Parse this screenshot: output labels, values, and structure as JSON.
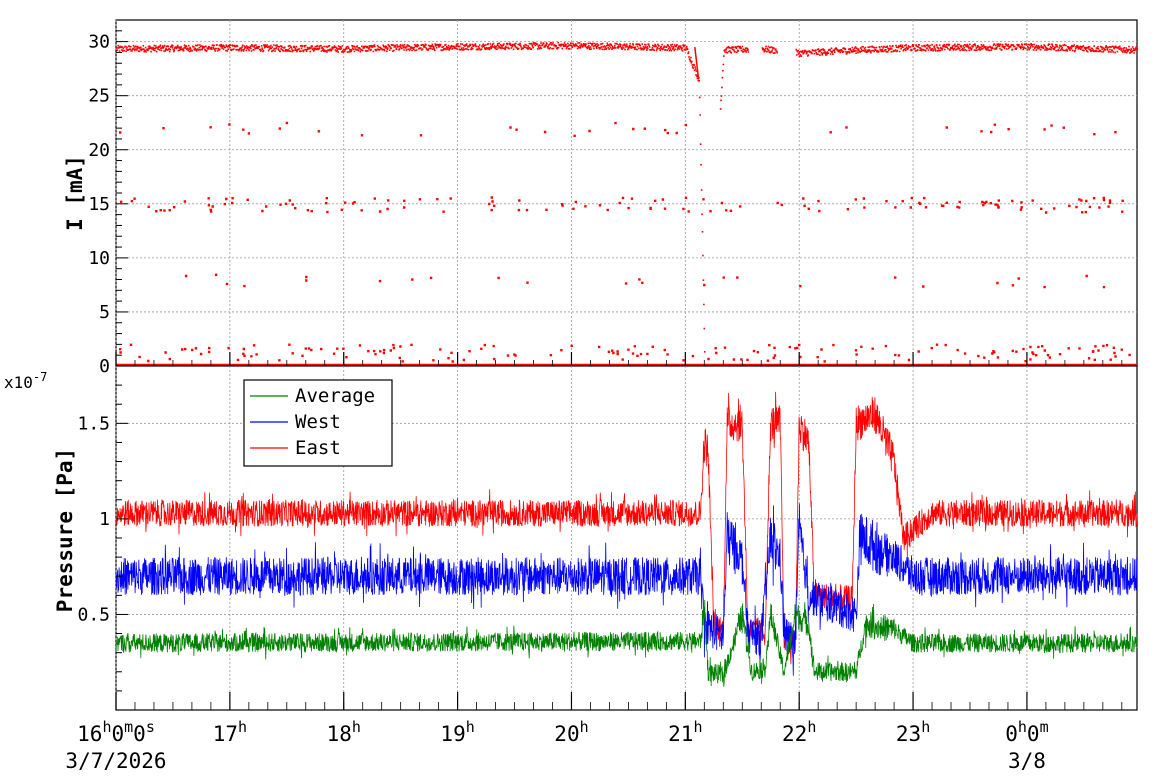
{
  "chart_data": [
    {
      "type": "scatter",
      "ylabel": "I [mA]",
      "ylim": [
        0,
        32
      ],
      "yticks": [
        0,
        5,
        10,
        15,
        20,
        25,
        30
      ],
      "ytick_labels": [
        "0",
        "5",
        "10",
        "15",
        "20",
        "25",
        "30"
      ],
      "grid": true,
      "x_start": "2026-03-07 16:00",
      "x_end": "2026-03-08 00:58",
      "series": [
        {
          "color": "#ff0000",
          "approx_levels_mA": [
            29.5,
            22,
            15,
            8,
            0.5
          ],
          "beam_current_trace": [
            [
              "2026-03-07 16:00",
              29.4
            ],
            [
              "2026-03-07 17:00",
              29.5
            ],
            [
              "2026-03-07 18:00",
              29.4
            ],
            [
              "2026-03-07 19:00",
              29.6
            ],
            [
              "2026-03-07 20:00",
              29.7
            ],
            [
              "2026-03-07 21:00",
              29.5
            ],
            [
              "2026-03-07 21:07",
              26.5
            ],
            [
              "2026-03-07 21:10",
              0.0
            ],
            [
              "2026-03-07 21:20",
              29.3
            ],
            [
              "2026-03-07 21:40",
              29.4
            ],
            [
              "2026-03-07 22:00",
              29.0
            ],
            [
              "2026-03-07 22:30",
              29.3
            ],
            [
              "2026-03-07 23:00",
              29.5
            ],
            [
              "2026-03-08 00:00",
              29.6
            ],
            [
              "2026-03-08 00:58",
              29.3
            ]
          ],
          "gaps": [
            [
              "2026-03-07 21:10",
              "2026-03-07 21:18"
            ],
            [
              "2026-03-07 21:33",
              "2026-03-07 21:40"
            ],
            [
              "2026-03-07 21:48",
              "2026-03-07 21:58"
            ]
          ]
        }
      ]
    },
    {
      "type": "line",
      "ylabel": "Pressure [Pa]",
      "y_multiplier": "x10^-7",
      "y_multiplier_base": "x10",
      "y_multiplier_exp": "-7",
      "ylim": [
        0.0,
        1.8
      ],
      "yticks": [
        0.5,
        1.0,
        1.5
      ],
      "ytick_labels": [
        "0.5",
        "1",
        "1.5"
      ],
      "grid": true,
      "legend_position": "top-left",
      "x_start": "2026-03-07 16:00",
      "x_end": "2026-03-08 00:58",
      "series": [
        {
          "name": "Average",
          "color": "#008000",
          "baseline": 0.35,
          "noise": 0.05,
          "points": [
            [
              "2026-03-07 16:00",
              0.35
            ],
            [
              "2026-03-07 21:08",
              0.36
            ],
            [
              "2026-03-07 21:10",
              0.55
            ],
            [
              "2026-03-07 21:12",
              0.2
            ],
            [
              "2026-03-07 21:20",
              0.18
            ],
            [
              "2026-03-07 21:30",
              0.5
            ],
            [
              "2026-03-07 21:35",
              0.2
            ],
            [
              "2026-03-07 21:42",
              0.22
            ],
            [
              "2026-03-07 21:45",
              0.5
            ],
            [
              "2026-03-07 21:52",
              0.2
            ],
            [
              "2026-03-07 21:58",
              0.5
            ],
            [
              "2026-03-07 22:05",
              0.45
            ],
            [
              "2026-03-07 22:08",
              0.2
            ],
            [
              "2026-03-07 22:30",
              0.2
            ],
            [
              "2026-03-07 22:35",
              0.45
            ],
            [
              "2026-03-07 22:50",
              0.42
            ],
            [
              "2026-03-07 23:00",
              0.35
            ],
            [
              "2026-03-08 00:58",
              0.35
            ]
          ]
        },
        {
          "name": "West",
          "color": "#0000ff",
          "baseline": 0.7,
          "noise": 0.1,
          "points": [
            [
              "2026-03-07 16:00",
              0.7
            ],
            [
              "2026-03-07 21:08",
              0.7
            ],
            [
              "2026-03-07 21:10",
              0.45
            ],
            [
              "2026-03-07 21:20",
              0.38
            ],
            [
              "2026-03-07 21:22",
              0.9
            ],
            [
              "2026-03-07 21:30",
              0.8
            ],
            [
              "2026-03-07 21:33",
              0.4
            ],
            [
              "2026-03-07 21:40",
              0.38
            ],
            [
              "2026-03-07 21:45",
              0.9
            ],
            [
              "2026-03-07 21:50",
              0.8
            ],
            [
              "2026-03-07 21:52",
              0.4
            ],
            [
              "2026-03-07 21:58",
              0.35
            ],
            [
              "2026-03-07 22:00",
              0.95
            ],
            [
              "2026-03-07 22:05",
              0.6
            ],
            [
              "2026-03-07 22:30",
              0.5
            ],
            [
              "2026-03-07 22:32",
              0.9
            ],
            [
              "2026-03-07 22:50",
              0.8
            ],
            [
              "2026-03-07 23:00",
              0.7
            ],
            [
              "2026-03-08 00:58",
              0.7
            ]
          ]
        },
        {
          "name": "East",
          "color": "#ff0000",
          "baseline": 1.03,
          "noise": 0.07,
          "points": [
            [
              "2026-03-07 16:00",
              1.03
            ],
            [
              "2026-03-07 21:08",
              1.03
            ],
            [
              "2026-03-07 21:10",
              1.4
            ],
            [
              "2026-03-07 21:12",
              1.35
            ],
            [
              "2026-03-07 21:15",
              0.45
            ],
            [
              "2026-03-07 21:20",
              0.42
            ],
            [
              "2026-03-07 21:22",
              1.5
            ],
            [
              "2026-03-07 21:30",
              1.5
            ],
            [
              "2026-03-07 21:33",
              0.42
            ],
            [
              "2026-03-07 21:42",
              0.4
            ],
            [
              "2026-03-07 21:45",
              1.5
            ],
            [
              "2026-03-07 21:50",
              1.5
            ],
            [
              "2026-03-07 21:52",
              0.38
            ],
            [
              "2026-03-07 21:58",
              0.35
            ],
            [
              "2026-03-07 22:00",
              1.5
            ],
            [
              "2026-03-07 22:05",
              1.4
            ],
            [
              "2026-03-07 22:08",
              0.6
            ],
            [
              "2026-03-07 22:28",
              0.58
            ],
            [
              "2026-03-07 22:30",
              1.5
            ],
            [
              "2026-03-07 22:40",
              1.55
            ],
            [
              "2026-03-07 22:50",
              1.3
            ],
            [
              "2026-03-07 22:55",
              0.9
            ],
            [
              "2026-03-07 23:10",
              1.03
            ],
            [
              "2026-03-08 00:58",
              1.03
            ]
          ]
        }
      ]
    }
  ],
  "x_axis": {
    "ticks": [
      {
        "time": "2026-03-07 16:00",
        "hour": "16",
        "minute": "0",
        "second": "0"
      },
      {
        "time": "2026-03-07 17:00",
        "hour": "17"
      },
      {
        "time": "2026-03-07 18:00",
        "hour": "18"
      },
      {
        "time": "2026-03-07 19:00",
        "hour": "19"
      },
      {
        "time": "2026-03-07 20:00",
        "hour": "20"
      },
      {
        "time": "2026-03-07 21:00",
        "hour": "21"
      },
      {
        "time": "2026-03-07 22:00",
        "hour": "22"
      },
      {
        "time": "2026-03-07 23:00",
        "hour": "23"
      },
      {
        "time": "2026-03-08 00:00",
        "hour": "0",
        "minute": "0"
      }
    ],
    "date_labels": [
      {
        "time": "2026-03-07 16:00",
        "text": "3/7/2026"
      },
      {
        "time": "2026-03-08 00:00",
        "text": "3/8"
      }
    ]
  }
}
